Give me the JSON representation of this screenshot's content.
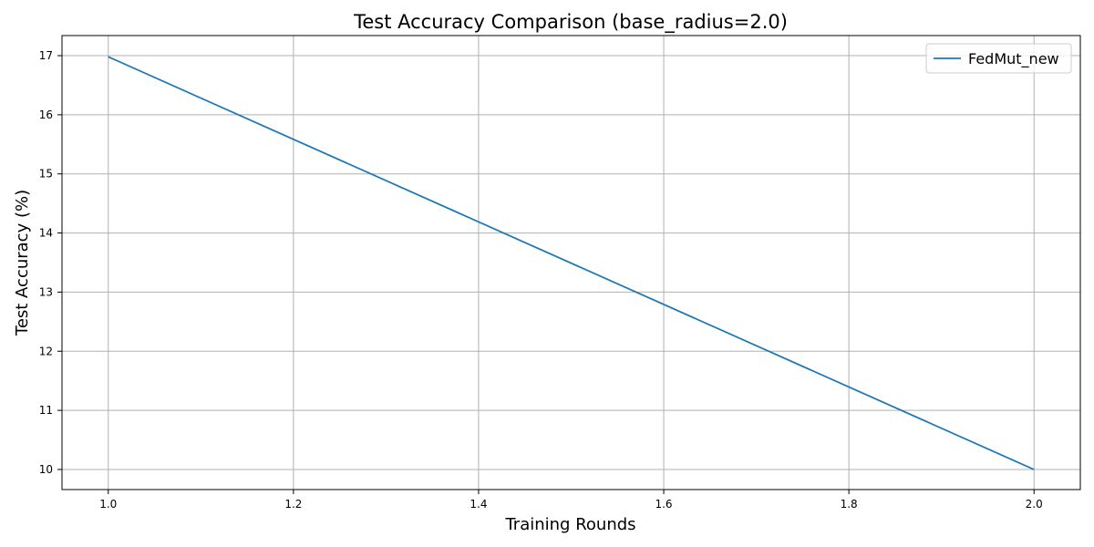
{
  "chart_data": {
    "type": "line",
    "title": "Test Accuracy Comparison (base_radius=2.0)",
    "xlabel": "Training Rounds",
    "ylabel": "Test Accuracy (%)",
    "xlim": [
      0.95,
      2.05
    ],
    "ylim": [
      9.66,
      17.34
    ],
    "xticks": [
      1.0,
      1.2,
      1.4,
      1.6,
      1.8,
      2.0
    ],
    "xtick_labels": [
      "1.0",
      "1.2",
      "1.4",
      "1.6",
      "1.8",
      "2.0"
    ],
    "yticks": [
      10,
      11,
      12,
      13,
      14,
      15,
      16,
      17
    ],
    "ytick_labels": [
      "10",
      "11",
      "12",
      "13",
      "14",
      "15",
      "16",
      "17"
    ],
    "grid": true,
    "legend_position": "top-right",
    "series": [
      {
        "name": "FedMut_new",
        "color": "#1f77b4",
        "x": [
          1.0,
          2.0
        ],
        "y": [
          16.98,
          10.0
        ]
      }
    ]
  }
}
